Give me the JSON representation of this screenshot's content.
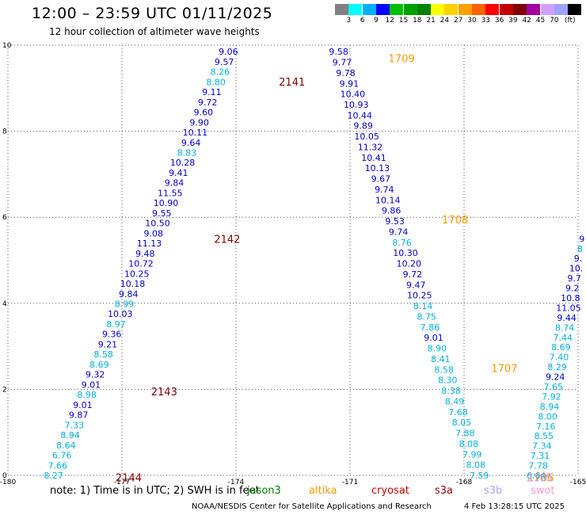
{
  "header": {
    "title": "12:00 – 23:59 UTC 01/11/2025",
    "subtitle": "12 hour collection of altimeter wave heights"
  },
  "legend": {
    "colors": [
      "#808080",
      "#00ffff",
      "#00b0ff",
      "#0000ff",
      "#00c000",
      "#00a000",
      "#008000",
      "#ffff00",
      "#ffd000",
      "#ffa000",
      "#ff6000",
      "#ff0000",
      "#c00000",
      "#800000",
      "#a000a0",
      "#d0a0ff",
      "#a0a0ff",
      "#000000"
    ],
    "ticks": [
      "3",
      "6",
      "9",
      "12",
      "15",
      "18",
      "21",
      "24",
      "27",
      "30",
      "33",
      "36",
      "39",
      "42",
      "45",
      "70"
    ],
    "unit": "(ft)"
  },
  "footer": {
    "note": "note:  1) Time is in UTC;  2) SWH is in feet",
    "missions": [
      {
        "name": "jason3",
        "color": "#008000"
      },
      {
        "name": "altika",
        "color": "#ff9900"
      },
      {
        "name": "cryosat",
        "color": "#cc0000"
      },
      {
        "name": "s3a",
        "color": "#990000"
      },
      {
        "name": "s3b",
        "color": "#b3a0ff"
      },
      {
        "name": "swot",
        "color": "#ff99cc"
      }
    ],
    "credit": "NOAA/NESDIS Center for Satellite Applications and Research",
    "timestamp": "4 Feb 13:28:15 UTC 2025"
  },
  "chart_data": {
    "type": "scatter",
    "title": "12:00 – 23:59 UTC 01/11/2025",
    "xlim": [
      -180,
      -165
    ],
    "ylim": [
      0,
      10
    ],
    "x_ticks": [
      "-180",
      "-177",
      "-174",
      "-171",
      "-168",
      "-165"
    ],
    "y_ticks": [
      "0",
      "2",
      "4",
      "6",
      "8",
      "10"
    ],
    "grid": true,
    "colors": {
      "dark": "#0000c8",
      "light": "#00b0e0",
      "time_s3a": "#800000",
      "time_altika": "#ff9900"
    },
    "tracks": [
      {
        "x_start": -174.2,
        "x_end": -178.8,
        "y_start": 9.85,
        "y_end": 0.0,
        "labels": [
          {
            "t": "9.06",
            "c": "dark"
          },
          {
            "t": "9.57",
            "c": "dark"
          },
          {
            "t": "8.26",
            "c": "light"
          },
          {
            "t": "8.80",
            "c": "light"
          },
          {
            "t": "9.11",
            "c": "dark"
          },
          {
            "t": "9.72",
            "c": "dark"
          },
          {
            "t": "9.60",
            "c": "dark"
          },
          {
            "t": "9.90",
            "c": "dark"
          },
          {
            "t": "10.11",
            "c": "dark"
          },
          {
            "t": "9.64",
            "c": "dark"
          },
          {
            "t": "8.83",
            "c": "light"
          },
          {
            "t": "10.28",
            "c": "dark"
          },
          {
            "t": "9.41",
            "c": "dark"
          },
          {
            "t": "9.84",
            "c": "dark"
          },
          {
            "t": "11.55",
            "c": "dark"
          },
          {
            "t": "10.90",
            "c": "dark"
          },
          {
            "t": "9.55",
            "c": "dark"
          },
          {
            "t": "10.50",
            "c": "dark"
          },
          {
            "t": "9.08",
            "c": "dark"
          },
          {
            "t": "11.13",
            "c": "dark"
          },
          {
            "t": "9.48",
            "c": "dark"
          },
          {
            "t": "10.72",
            "c": "dark"
          },
          {
            "t": "10.25",
            "c": "dark"
          },
          {
            "t": "10.18",
            "c": "dark"
          },
          {
            "t": "9.84",
            "c": "dark"
          },
          {
            "t": "8.99",
            "c": "light"
          },
          {
            "t": "10.03",
            "c": "dark"
          },
          {
            "t": "8.97",
            "c": "light"
          },
          {
            "t": "9.36",
            "c": "dark"
          },
          {
            "t": "9.21",
            "c": "dark"
          },
          {
            "t": "8.58",
            "c": "light"
          },
          {
            "t": "8.69",
            "c": "light"
          },
          {
            "t": "9.32",
            "c": "dark"
          },
          {
            "t": "9.01",
            "c": "dark"
          },
          {
            "t": "8.98",
            "c": "light"
          },
          {
            "t": "9.01",
            "c": "dark"
          },
          {
            "t": "9.87",
            "c": "dark"
          },
          {
            "t": "7.33",
            "c": "light"
          },
          {
            "t": "8.94",
            "c": "light"
          },
          {
            "t": "8.64",
            "c": "light"
          },
          {
            "t": "6.76",
            "c": "light"
          },
          {
            "t": "7.66",
            "c": "light"
          },
          {
            "t": "8.27",
            "c": "light"
          }
        ],
        "times": [
          {
            "t": "2141",
            "lat": 9.15,
            "c": "time_s3a"
          },
          {
            "t": "2142",
            "lat": 5.5,
            "c": "time_s3a"
          },
          {
            "t": "2143",
            "lat": 1.95,
            "c": "time_s3a"
          },
          {
            "t": "2144",
            "lat": -0.05,
            "c": "time_s3a"
          }
        ]
      },
      {
        "x_start": -171.3,
        "x_end": -167.6,
        "y_start": 9.85,
        "y_end": 0.0,
        "labels": [
          {
            "t": "9.58",
            "c": "dark"
          },
          {
            "t": "9.77",
            "c": "dark"
          },
          {
            "t": "9.78",
            "c": "dark"
          },
          {
            "t": "9.91",
            "c": "dark"
          },
          {
            "t": "10.40",
            "c": "dark"
          },
          {
            "t": "10.93",
            "c": "dark"
          },
          {
            "t": "10.44",
            "c": "dark"
          },
          {
            "t": "9.89",
            "c": "dark"
          },
          {
            "t": "10.05",
            "c": "dark"
          },
          {
            "t": "11.32",
            "c": "dark"
          },
          {
            "t": "10.41",
            "c": "dark"
          },
          {
            "t": "10.13",
            "c": "dark"
          },
          {
            "t": "9.67",
            "c": "dark"
          },
          {
            "t": "9.74",
            "c": "dark"
          },
          {
            "t": "10.14",
            "c": "dark"
          },
          {
            "t": "9.86",
            "c": "dark"
          },
          {
            "t": "9.53",
            "c": "dark"
          },
          {
            "t": "9.74",
            "c": "dark"
          },
          {
            "t": "8.76",
            "c": "light"
          },
          {
            "t": "10.30",
            "c": "dark"
          },
          {
            "t": "10.20",
            "c": "dark"
          },
          {
            "t": "9.72",
            "c": "dark"
          },
          {
            "t": "9.47",
            "c": "dark"
          },
          {
            "t": "10.25",
            "c": "dark"
          },
          {
            "t": "8.14",
            "c": "light"
          },
          {
            "t": "8.75",
            "c": "light"
          },
          {
            "t": "7.86",
            "c": "light"
          },
          {
            "t": "9.01",
            "c": "dark"
          },
          {
            "t": "8.90",
            "c": "light"
          },
          {
            "t": "8.41",
            "c": "light"
          },
          {
            "t": "8.58",
            "c": "light"
          },
          {
            "t": "8.30",
            "c": "light"
          },
          {
            "t": "8.38",
            "c": "light"
          },
          {
            "t": "8.49",
            "c": "light"
          },
          {
            "t": "7.68",
            "c": "light"
          },
          {
            "t": "8.05",
            "c": "light"
          },
          {
            "t": "7.88",
            "c": "light"
          },
          {
            "t": "8.08",
            "c": "light"
          },
          {
            "t": "7.99",
            "c": "light"
          },
          {
            "t": "8.08",
            "c": "light"
          },
          {
            "t": "7.59",
            "c": "light"
          }
        ],
        "times": [
          {
            "t": "1709",
            "lat": 9.7,
            "c": "time_altika"
          },
          {
            "t": "1708",
            "lat": 5.95,
            "c": "time_altika"
          },
          {
            "t": "1707",
            "lat": 2.5,
            "c": "time_altika"
          },
          {
            "t": "1706",
            "lat": -0.05,
            "c": "time_altika"
          }
        ]
      },
      {
        "x_start": -164.9,
        "x_end": -166.1,
        "y_start": 5.5,
        "y_end": 0.0,
        "labels": [
          {
            "t": "9",
            "c": "dark"
          },
          {
            "t": "8",
            "c": "light"
          },
          {
            "t": "9.",
            "c": "dark"
          },
          {
            "t": "10.",
            "c": "dark"
          },
          {
            "t": "9.7",
            "c": "dark"
          },
          {
            "t": "9.2",
            "c": "dark"
          },
          {
            "t": "10.8",
            "c": "dark"
          },
          {
            "t": "11.05",
            "c": "dark"
          },
          {
            "t": "9.44",
            "c": "dark"
          },
          {
            "t": "8.74",
            "c": "light"
          },
          {
            "t": "7.44",
            "c": "light"
          },
          {
            "t": "8.69",
            "c": "light"
          },
          {
            "t": "7.40",
            "c": "light"
          },
          {
            "t": "8.29",
            "c": "light"
          },
          {
            "t": "9.24",
            "c": "dark"
          },
          {
            "t": "7.65",
            "c": "light"
          },
          {
            "t": "7.92",
            "c": "light"
          },
          {
            "t": "8.94",
            "c": "light"
          },
          {
            "t": "8.00",
            "c": "light"
          },
          {
            "t": "7.16",
            "c": "light"
          },
          {
            "t": "8.55",
            "c": "light"
          },
          {
            "t": "7.34",
            "c": "light"
          },
          {
            "t": "7.31",
            "c": "light"
          },
          {
            "t": "7.78",
            "c": "light"
          },
          {
            "t": "6.64",
            "c": "light"
          }
        ],
        "times": [
          {
            "t": "2105",
            "lat": -0.05,
            "c": "time_s3b"
          }
        ]
      }
    ]
  }
}
